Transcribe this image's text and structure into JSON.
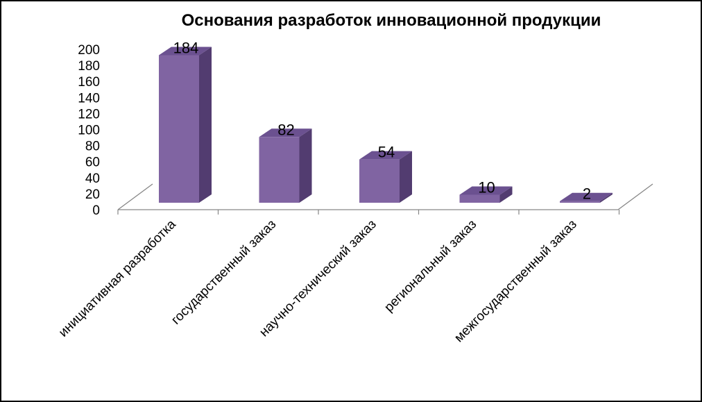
{
  "chart_data": {
    "type": "bar",
    "style": "3d-column",
    "title": "Основания разработок инновационной продукции",
    "xlabel": "",
    "ylabel": "",
    "categories": [
      "инициативная разработка",
      "государственный заказ",
      "научно-технический заказ",
      "региональный заказ",
      "межгосударственный заказ"
    ],
    "values": [
      184,
      82,
      54,
      10,
      2
    ],
    "data_labels": [
      "184",
      "82",
      "54",
      "10",
      "2"
    ],
    "ylim": [
      0,
      200
    ],
    "yticks": [
      0,
      20,
      40,
      60,
      80,
      100,
      120,
      140,
      160,
      180,
      200
    ],
    "grid": false,
    "legend": "none",
    "colors": {
      "bar_front": "#8064a2",
      "bar_top": "#6b5190",
      "bar_side": "#523c70",
      "axis": "#868686"
    }
  }
}
